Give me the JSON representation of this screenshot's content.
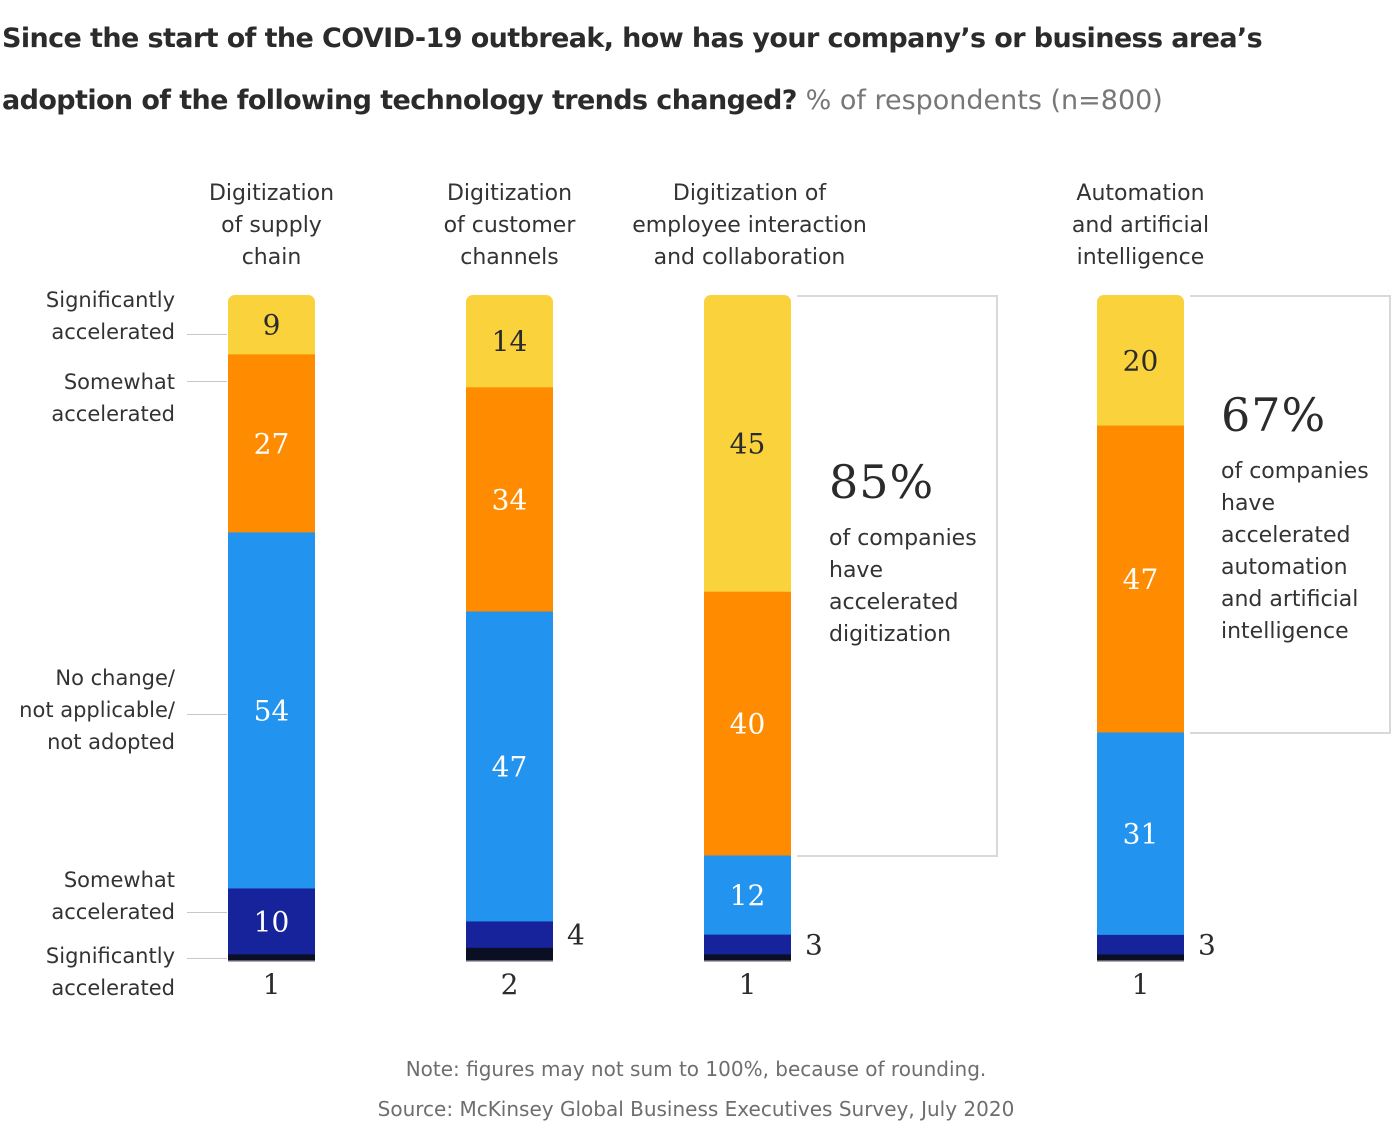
{
  "title": {
    "main": "Since the start of the COVID-19 outbreak, how has your company’s or business area’s adoption of the following technology trends changed?",
    "subtitle": "% of respondents (n=800)"
  },
  "segment_labels": [
    "Significantly accelerated",
    "Somewhat accelerated",
    "No change/ not applicable/ not adopted",
    "Somewhat accelerated",
    "Significantly accelerated"
  ],
  "segment_label_lines": [
    [
      "Significantly",
      "accelerated"
    ],
    [
      "Somewhat",
      "accelerated"
    ],
    [
      "No change/",
      "not applicable/",
      "not adopted"
    ],
    [
      "Somewhat",
      "accelerated"
    ],
    [
      "Significantly",
      "accelerated"
    ]
  ],
  "colors": {
    "significantly_accelerated_top": "#F9D23C",
    "somewhat_accelerated_top": "#FF8C00",
    "no_change": "#2293EE",
    "somewhat_accelerated_bottom": "#17239B",
    "significantly_accelerated_bottom": "#0A0F24",
    "callout_border": "#D9D9D9"
  },
  "callouts": [
    {
      "column": 2,
      "value": "85%",
      "lines": [
        "of companies",
        "have",
        "accelerated",
        "digitization"
      ]
    },
    {
      "column": 3,
      "value": "67%",
      "lines": [
        "of companies",
        "have",
        "accelerated",
        "automation",
        "and artificial",
        "intelligence"
      ]
    }
  ],
  "footer": {
    "note": "Note: figures may not sum to 100%, because of rounding.",
    "source": "Source: McKinsey Global Business Executives Survey, July 2020"
  },
  "chart_data": {
    "type": "bar",
    "stacked": true,
    "orientation": "vertical",
    "title": "Since the start of the COVID-19 outbreak, how has your company’s or business area’s adoption of the following technology trends changed?",
    "subtitle": "% of respondents (n=800)",
    "categories": [
      "Digitization of supply chain",
      "Digitization of customer channels",
      "Digitization of employee interaction and collaboration",
      "Automation and artificial intelligence"
    ],
    "category_lines": [
      [
        "Digitization",
        "of supply",
        "chain"
      ],
      [
        "Digitization",
        "of customer",
        "channels"
      ],
      [
        "Digitization of",
        "employee interaction",
        "and collaboration"
      ],
      [
        "Automation",
        "and artificial",
        "intelligence"
      ]
    ],
    "series": [
      {
        "name": "Significantly accelerated",
        "values": [
          9,
          14,
          45,
          20
        ]
      },
      {
        "name": "Somewhat accelerated",
        "values": [
          27,
          34,
          40,
          47
        ]
      },
      {
        "name": "No change/not applicable/not adopted",
        "values": [
          54,
          47,
          12,
          31
        ]
      },
      {
        "name": "Somewhat accelerated (lower)",
        "values": [
          10,
          4,
          3,
          3
        ]
      },
      {
        "name": "Significantly accelerated (lower)",
        "values": [
          1,
          2,
          1,
          1
        ]
      }
    ],
    "label_colors": [
      "#2b2b2b",
      "#ffffff",
      "#ffffff",
      "#ffffff",
      "#2b2b2b"
    ],
    "xlabel": "",
    "ylabel": "% of respondents",
    "ylim": [
      0,
      100
    ],
    "grid": false,
    "legend": "left"
  }
}
